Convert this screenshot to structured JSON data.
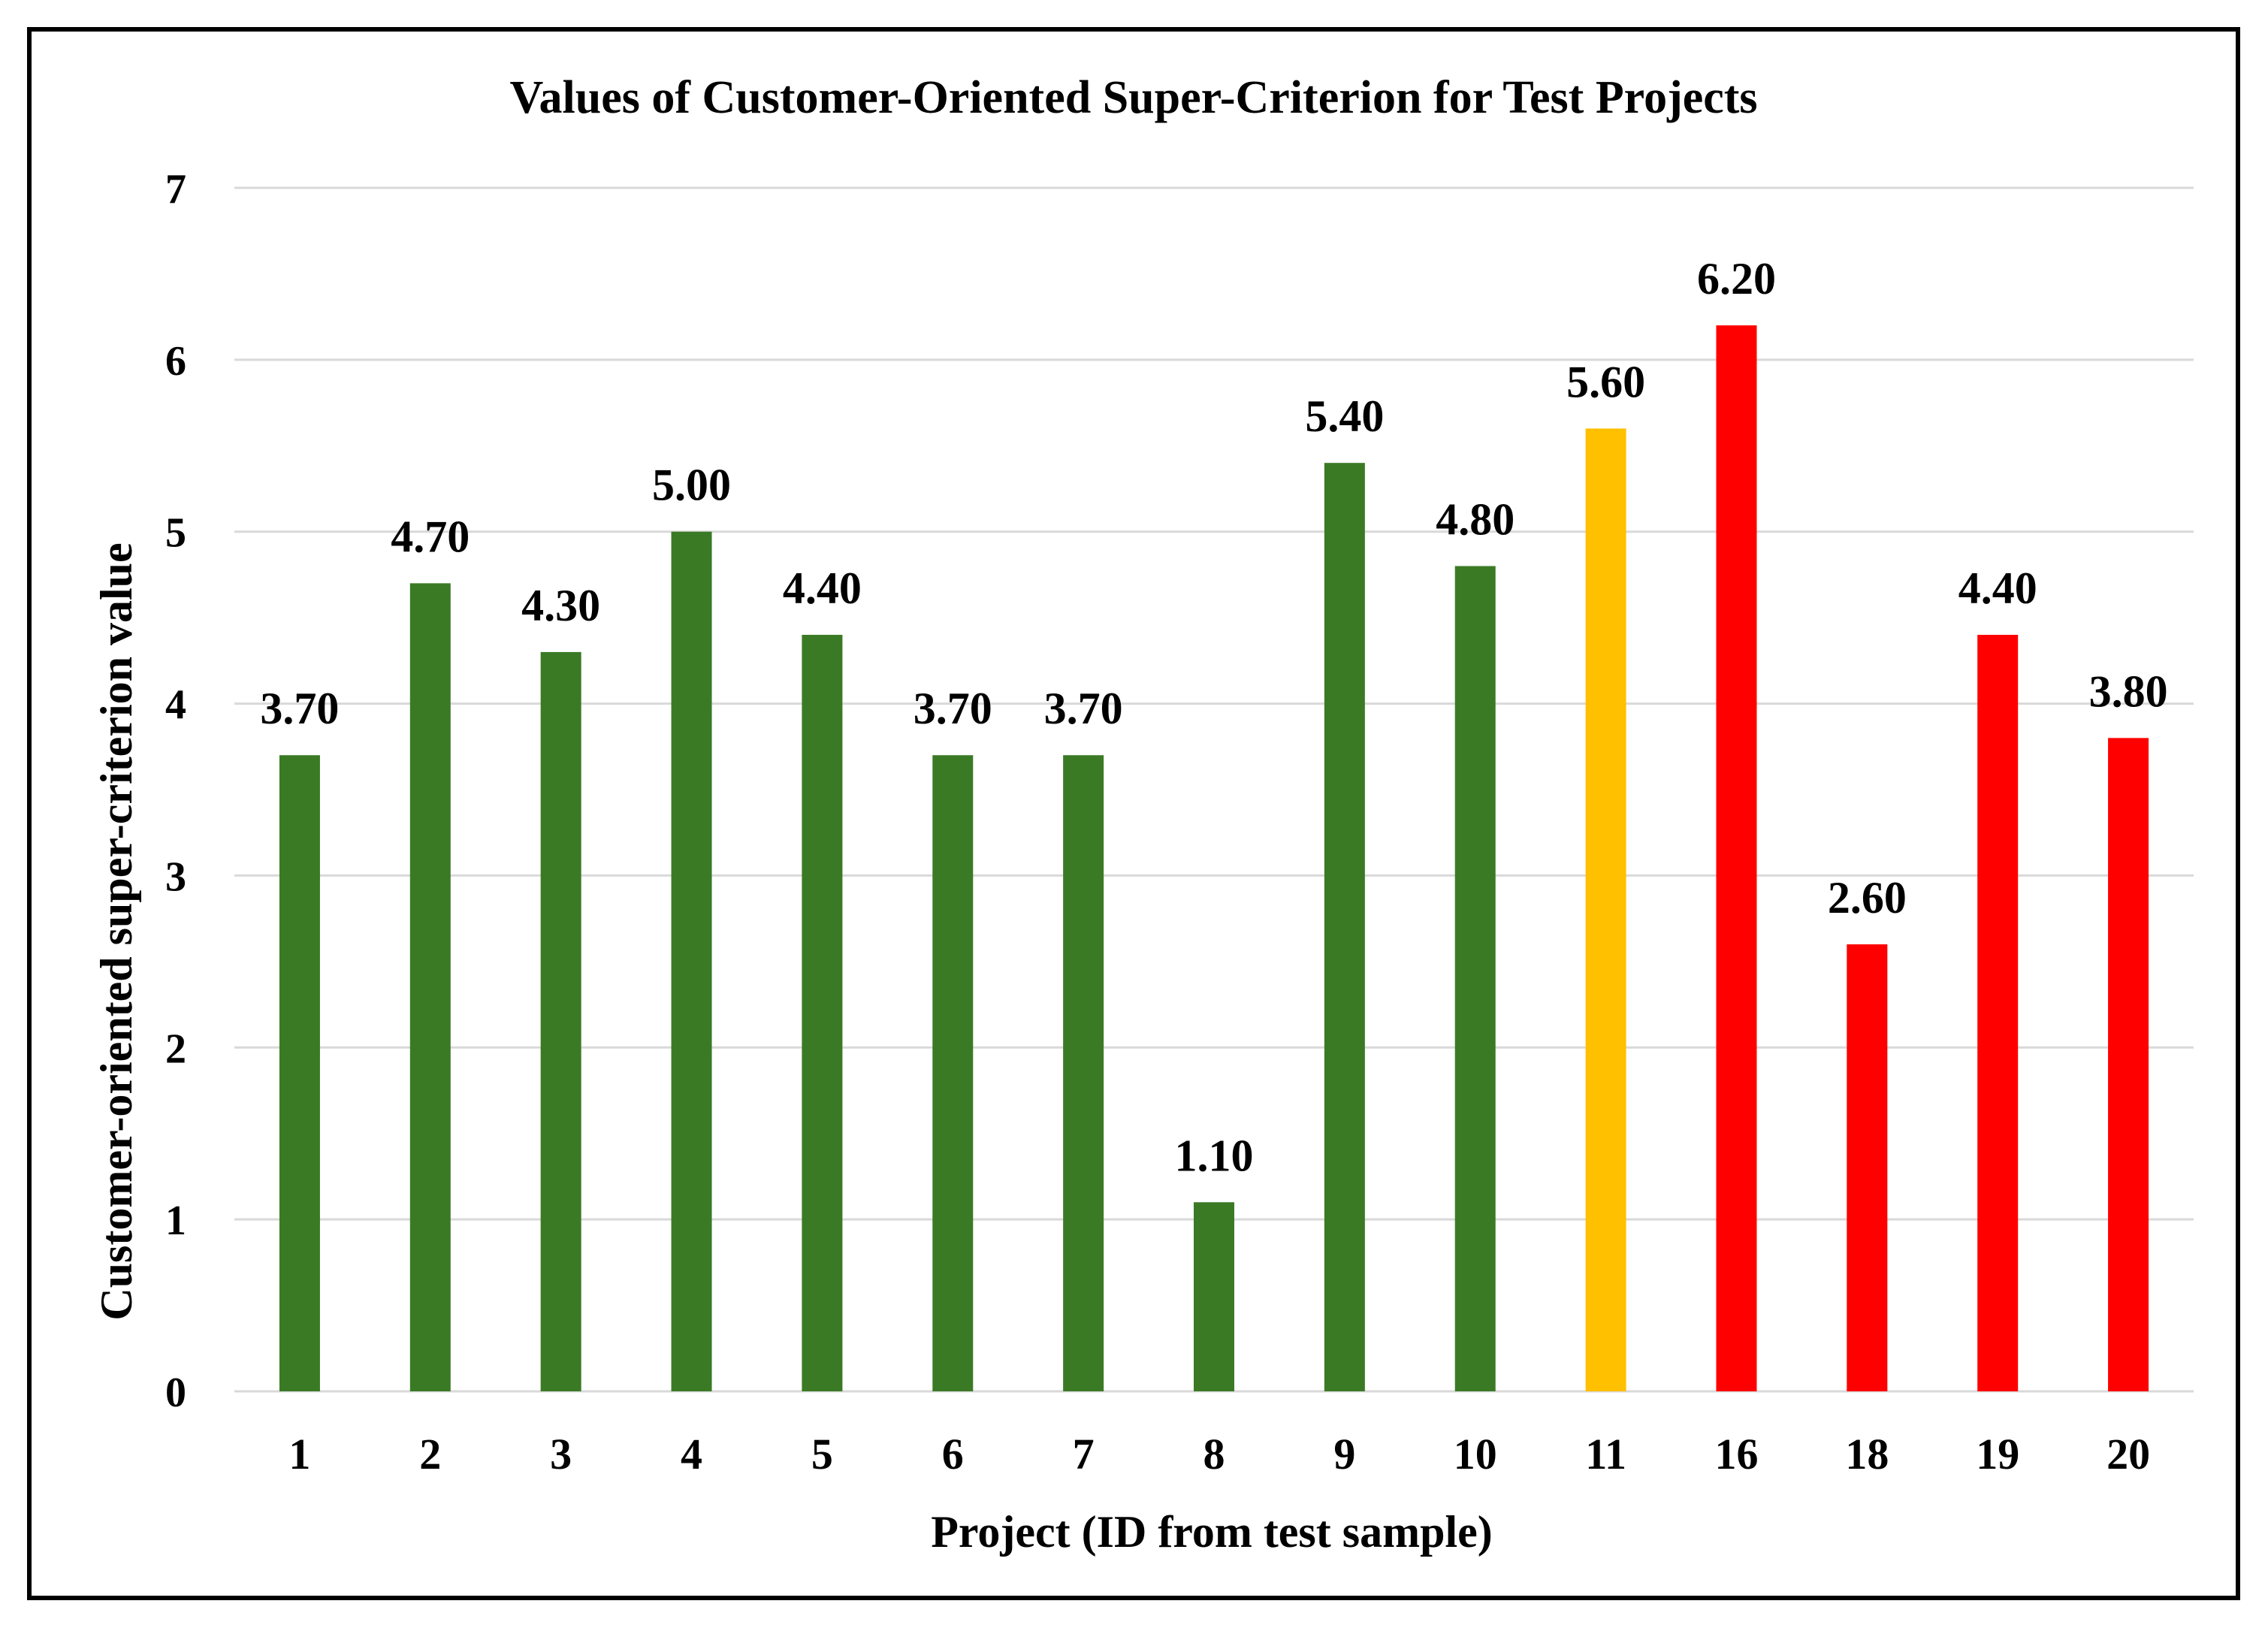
{
  "chart_data": {
    "type": "bar",
    "title": "Values of Customer-Oriented Super-Criterion for Test Projects",
    "xlabel": "Project (ID from test sample)",
    "ylabel": "Customer-oriented super-criterion value",
    "ylim": [
      0,
      7
    ],
    "yticks": [
      "0",
      "1",
      "2",
      "3",
      "4",
      "5",
      "6",
      "7"
    ],
    "grid": true,
    "legend": "none",
    "categories": [
      "1",
      "2",
      "3",
      "4",
      "5",
      "6",
      "7",
      "8",
      "9",
      "10",
      "11",
      "16",
      "18",
      "19",
      "20"
    ],
    "values": [
      3.7,
      4.7,
      4.3,
      5.0,
      4.4,
      3.7,
      3.7,
      1.1,
      5.4,
      4.8,
      5.6,
      6.2,
      2.6,
      4.4,
      3.8
    ],
    "data_labels": [
      "3.70",
      "4.70",
      "4.30",
      "5.00",
      "4.40",
      "3.70",
      "3.70",
      "1.10",
      "5.40",
      "4.80",
      "5.60",
      "6.20",
      "2.60",
      "4.40",
      "3.80"
    ],
    "bar_colors": [
      "#3b7a25",
      "#3b7a25",
      "#3b7a25",
      "#3b7a25",
      "#3b7a25",
      "#3b7a25",
      "#3b7a25",
      "#3b7a25",
      "#3b7a25",
      "#3b7a25",
      "#ffc000",
      "#ff0000",
      "#ff0000",
      "#ff0000",
      "#ff0000"
    ]
  }
}
